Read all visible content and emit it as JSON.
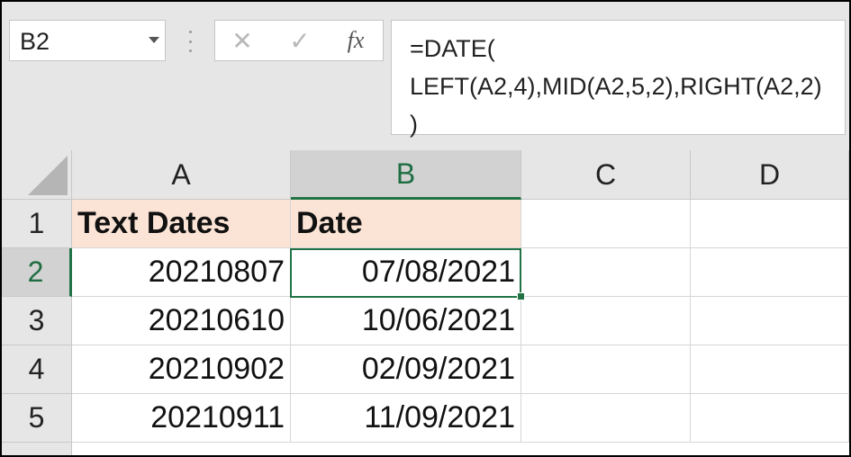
{
  "name_box": {
    "value": "B2"
  },
  "formula_bar": {
    "cancel_symbol": "✕",
    "enter_symbol": "✓",
    "fx_symbol": "fx",
    "formula_lines": [
      "=DATE(",
      "LEFT(A2,4),MID(A2,5,2),RIGHT(A2,2)",
      ")"
    ]
  },
  "columns": [
    "A",
    "B",
    "C",
    "D"
  ],
  "rows": [
    "1",
    "2",
    "3",
    "4",
    "5"
  ],
  "cells": [
    [
      "Text Dates",
      "Date",
      "",
      ""
    ],
    [
      "20210807",
      "07/08/2021",
      "",
      ""
    ],
    [
      "20210610",
      "10/06/2021",
      "",
      ""
    ],
    [
      "20210902",
      "02/09/2021",
      "",
      ""
    ],
    [
      "20210911",
      "11/09/2021",
      "",
      ""
    ]
  ],
  "selection": {
    "active_cell": "B2",
    "column": "B",
    "row": "2"
  },
  "colors": {
    "accent_green": "#217346",
    "header_fill": "#fbe4d5",
    "header_bg": "#e6e6e6"
  }
}
